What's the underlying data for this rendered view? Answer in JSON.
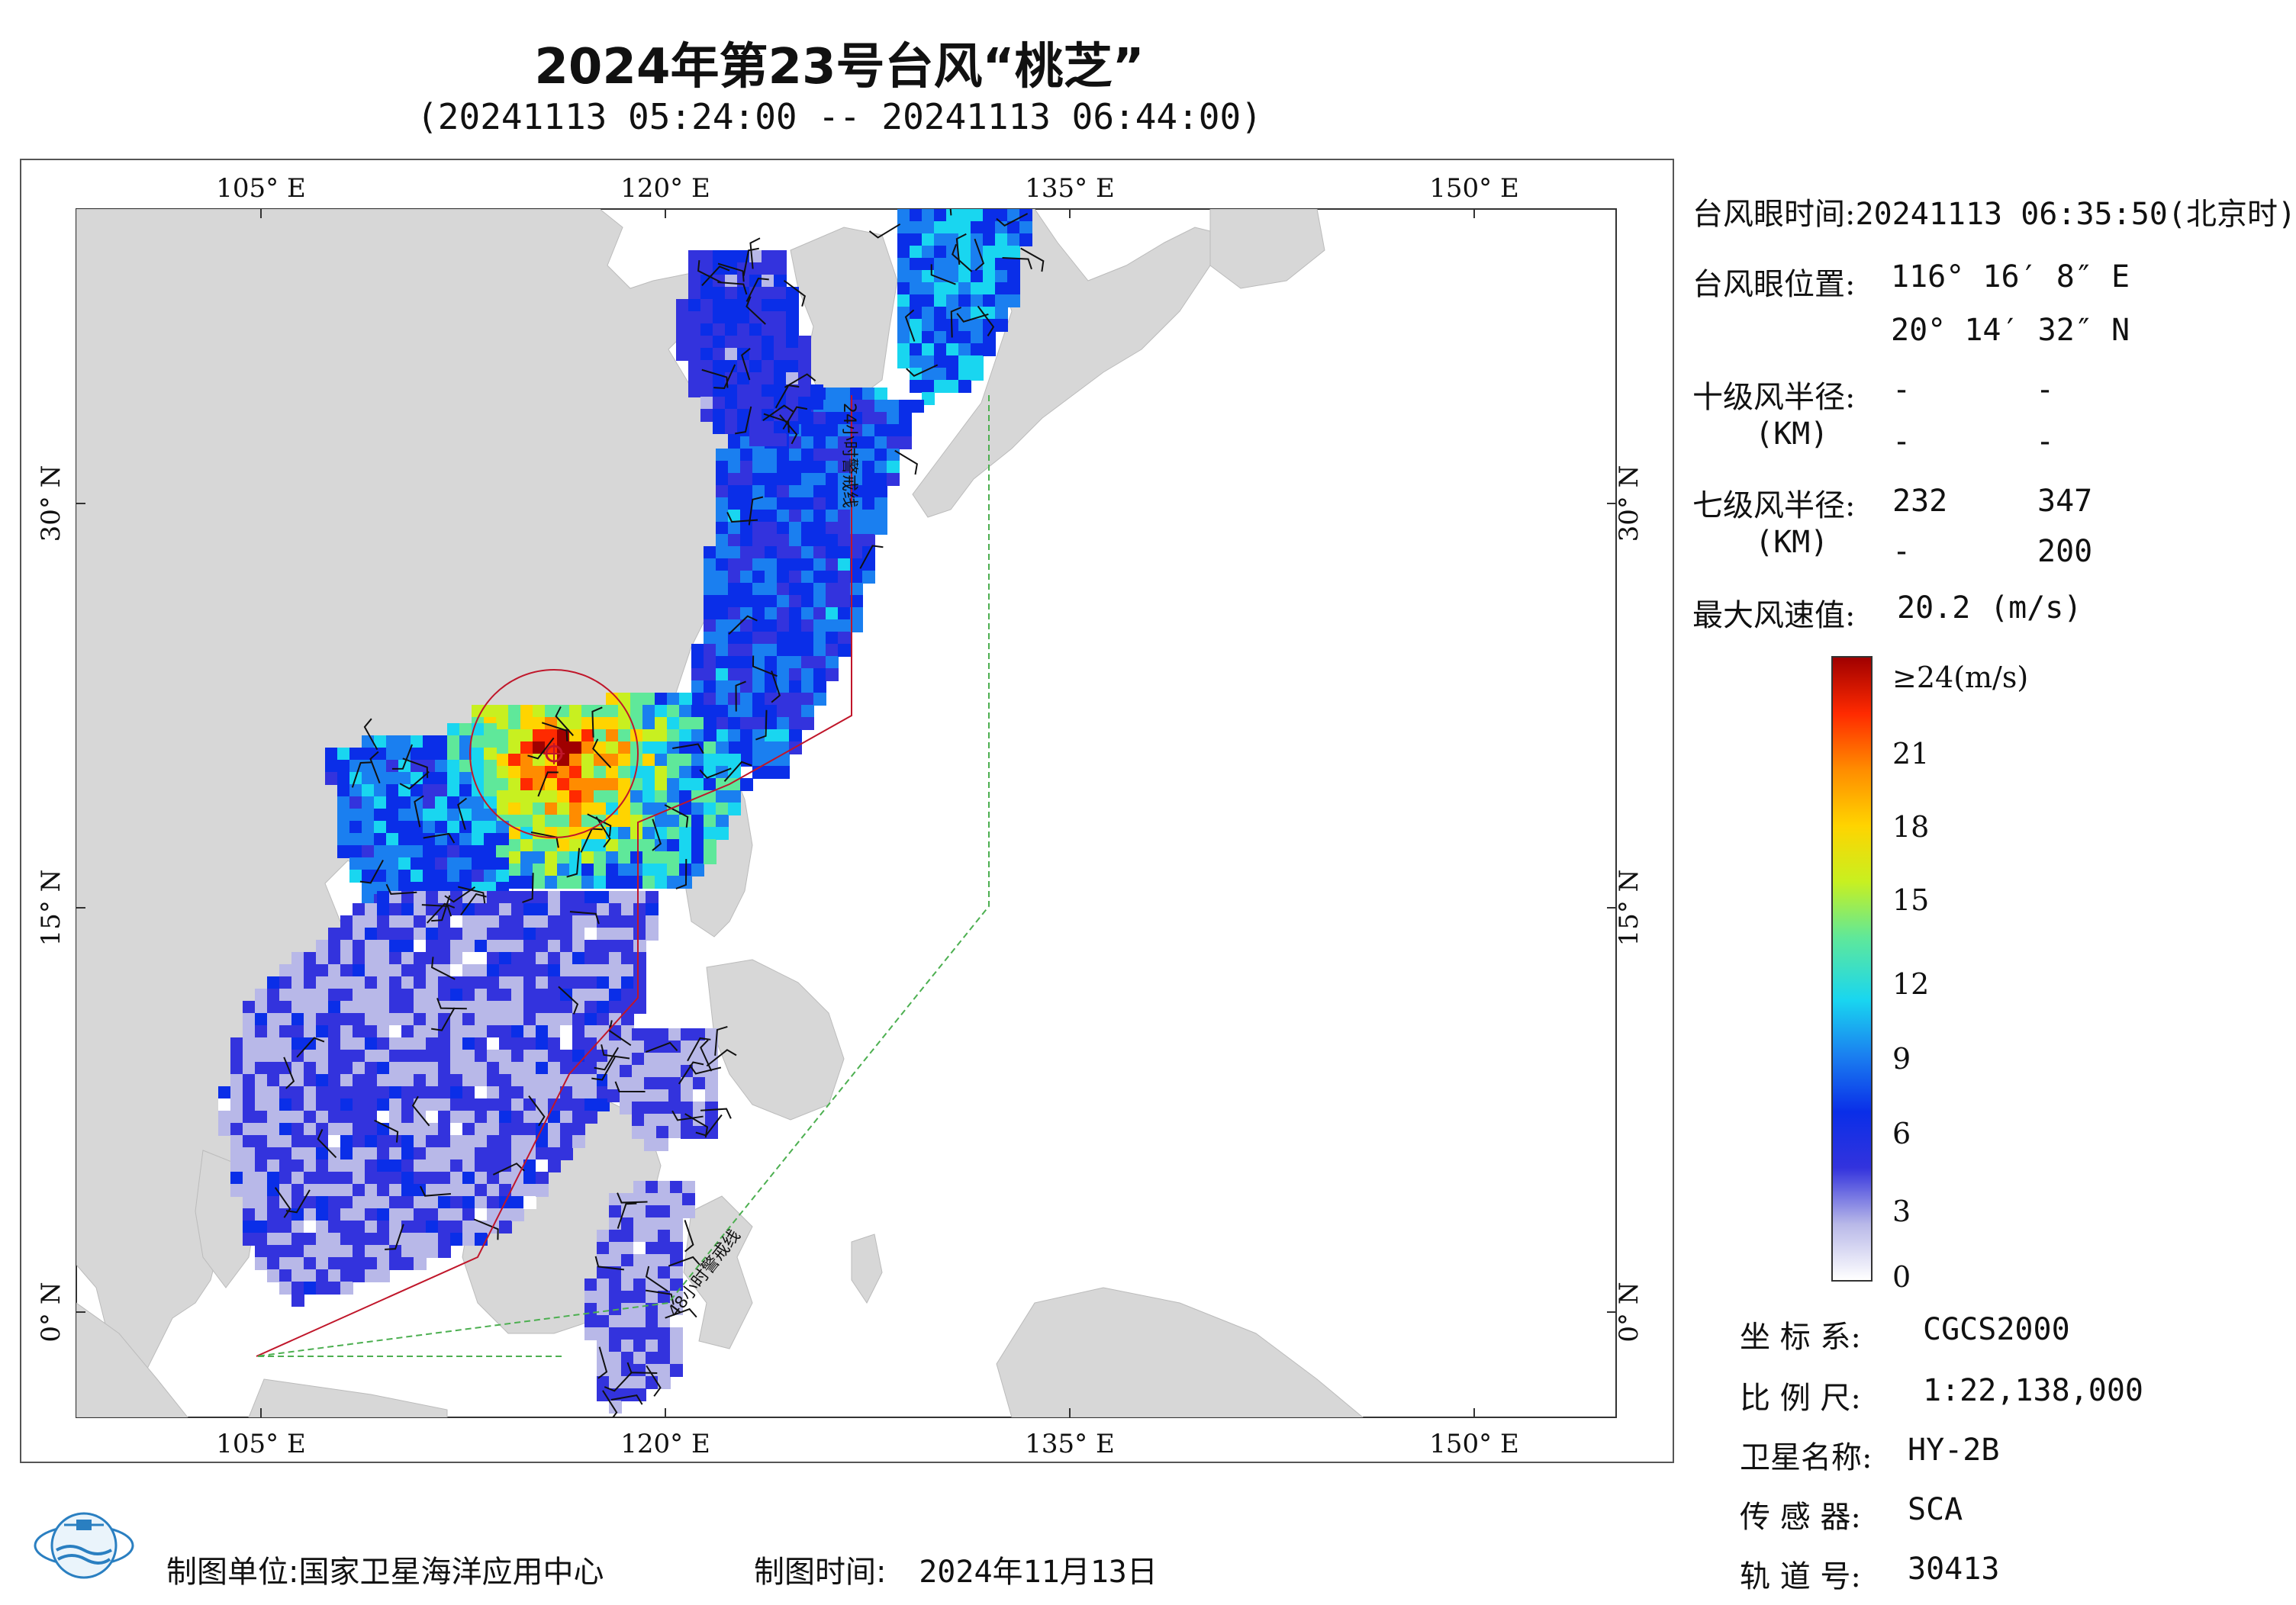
{
  "header": {
    "title": "2024年第23号台风“桃芝”",
    "subtitle": "(20241113 05:24:00 -- 20241113 06:44:00)"
  },
  "map": {
    "top_axis": [
      "105° E",
      "120° E",
      "135° E",
      "150° E"
    ],
    "bottom_axis": [
      "105° E",
      "120° E",
      "135° E",
      "150° E"
    ],
    "left_axis": [
      "30° N",
      "15° N",
      "0° N"
    ],
    "right_axis": [
      "30° N",
      "15° N",
      "0° N"
    ],
    "warning_24h": "24小时警戒线",
    "warning_48h": "48小时警戒线",
    "lon_range": [
      98,
      155
    ],
    "lat_range": [
      -4,
      41
    ],
    "land_color": "#d7d7d7",
    "warning_24h_color": "#c0162a",
    "warning_48h_color": "#4caf50"
  },
  "info": {
    "eye_time_label": "台风眼时间:",
    "eye_time_value": "20241113 06:35:50(北京时)",
    "eye_pos_label": "台风眼位置:",
    "eye_lon": "116° 16′ 8″ E",
    "eye_lat": "20° 14′ 32″ N",
    "r10_label": "十级风半径:",
    "r10_unit": "(KM)",
    "r10_values": [
      "-",
      "-",
      "-",
      "-"
    ],
    "r7_label": "七级风半径:",
    "r7_unit": "(KM)",
    "r7_values": [
      "232",
      "347",
      "-",
      "200"
    ],
    "max_wind_label": "最大风速值:",
    "max_wind_value": "20.2",
    "max_wind_unit": "(m/s)"
  },
  "colorbar": {
    "ticks": [
      "≥24(m/s)",
      "21",
      "18",
      "15",
      "12",
      "9",
      "6",
      "3",
      "0"
    ],
    "colors": [
      "#ffffff",
      "#b8b8e8",
      "#3333dd",
      "#0a2ee8",
      "#1a7ff0",
      "#19d6f0",
      "#5fe89a",
      "#c8f020",
      "#ffd400",
      "#ff8c00",
      "#ff2a00",
      "#a00000"
    ]
  },
  "meta": {
    "crs_label": "坐 标 系:",
    "crs_value": "CGCS2000",
    "scale_label": "比 例 尺:",
    "scale_value": "1:22,138,000",
    "sat_label": "卫星名称:",
    "sat_value": "HY-2B",
    "sensor_label": "传 感 器:",
    "sensor_value": "SCA",
    "orbit_label": "轨 道 号:",
    "orbit_value": "30413"
  },
  "footer": {
    "org_label": "制图单位:",
    "org_value": "国家卫星海洋应用中心",
    "date_label": "制图时间:",
    "date_value": "2024年11月13日"
  }
}
